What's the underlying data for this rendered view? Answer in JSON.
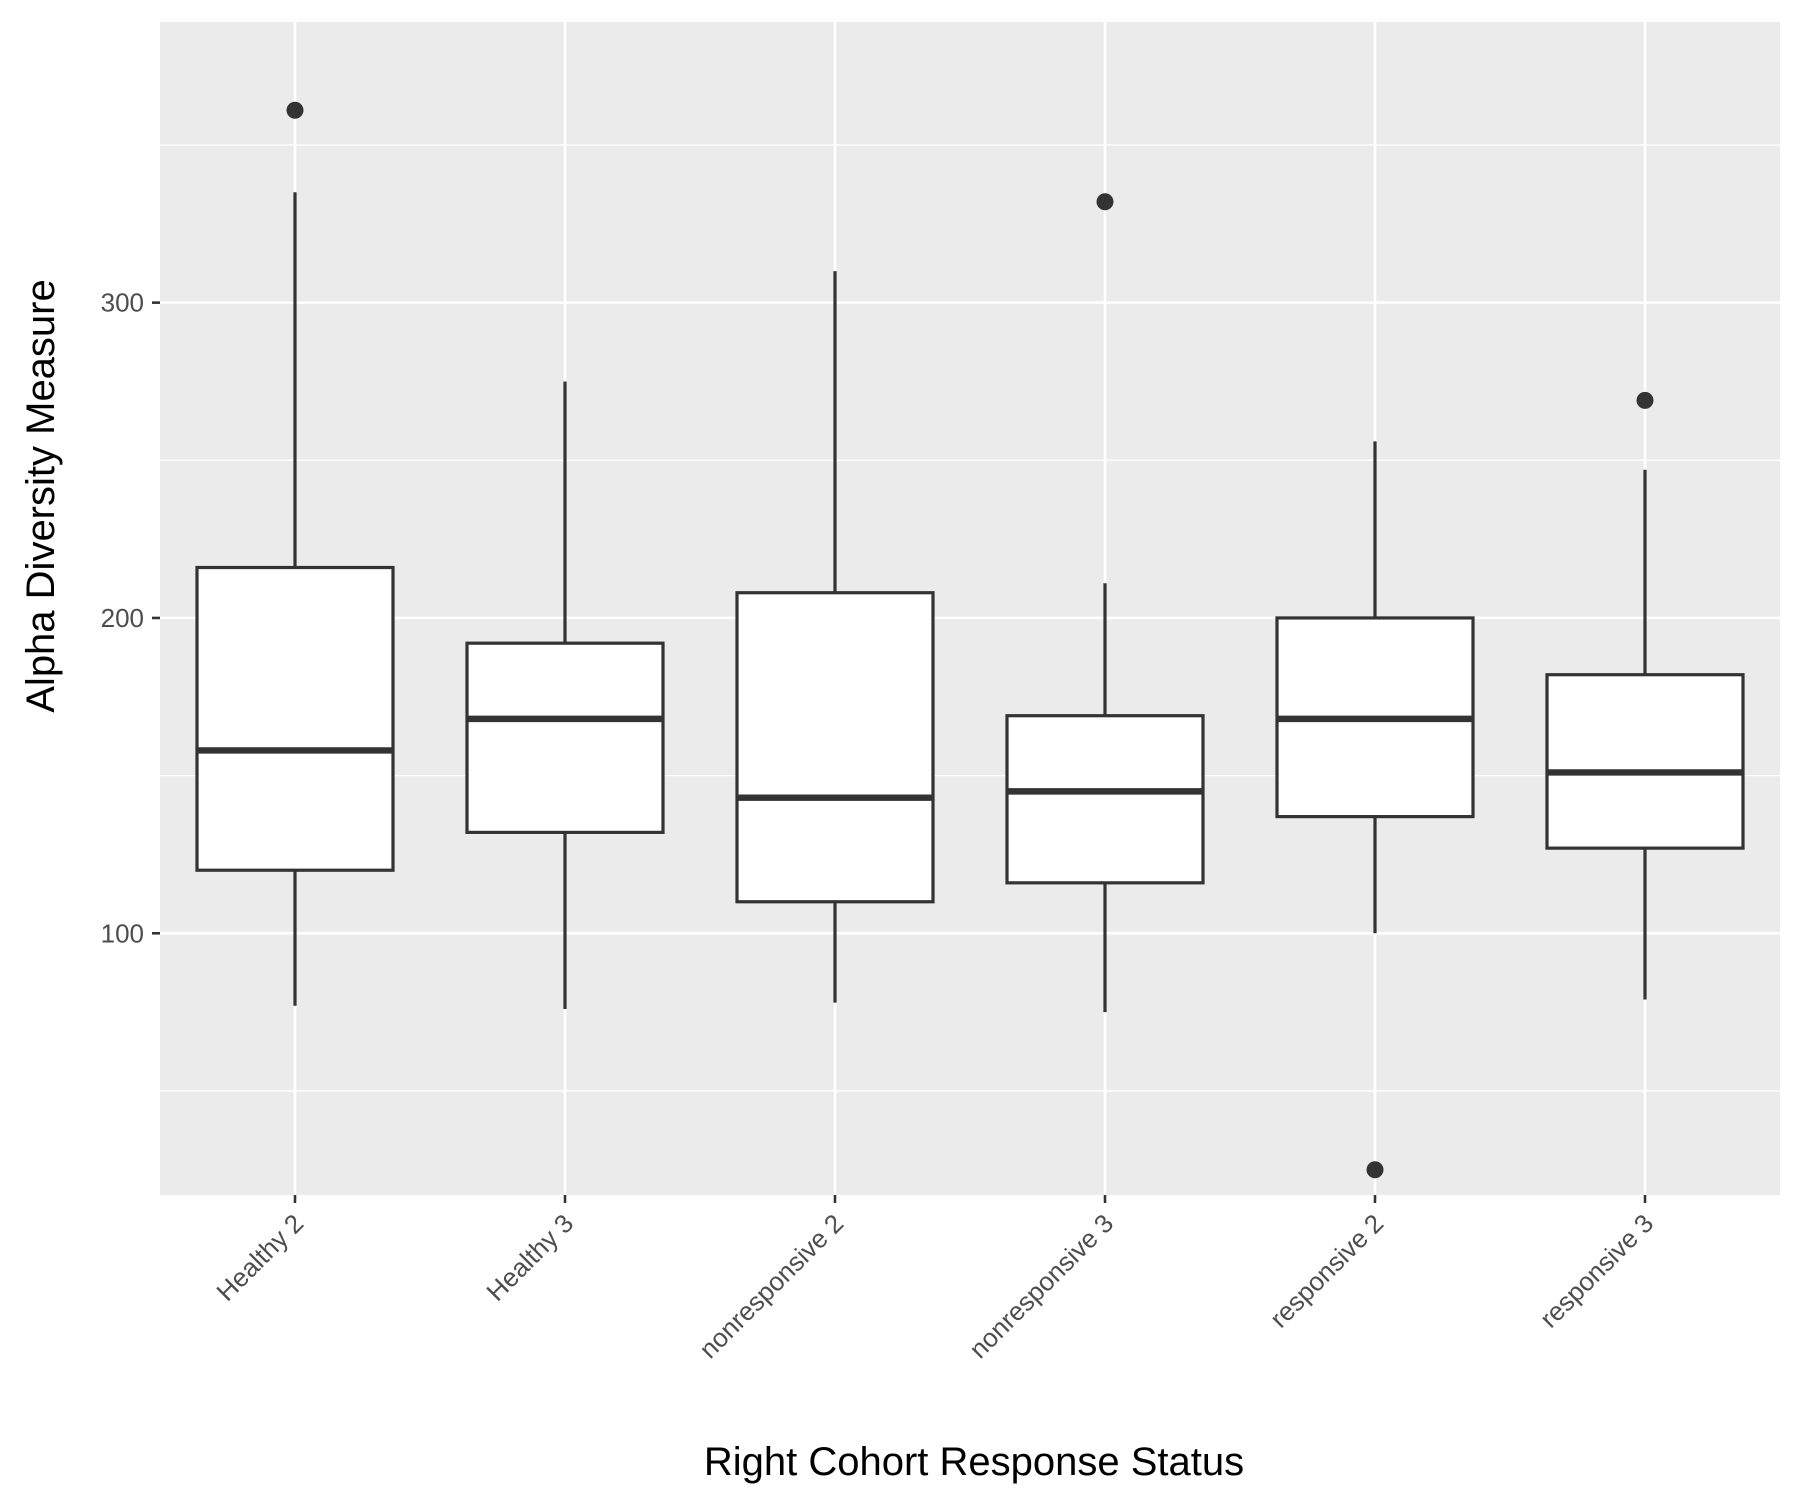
{
  "chart_data": {
    "type": "box",
    "xlabel": "Right Cohort Response Status",
    "ylabel": "Alpha Diversity Measure",
    "ylim": [
      17,
      389
    ],
    "y_ticks": [
      100,
      200,
      300
    ],
    "y_minor_ticks": [
      50,
      150,
      250,
      350
    ],
    "grid": true,
    "colors": {
      "panel": "#ebebeb",
      "grid": "#ffffff",
      "box_fill": "#ffffff",
      "box_line": "#333333",
      "outlier": "#333333",
      "tick": "#333333"
    },
    "categories": [
      "Healthy 2",
      "Healthy 3",
      "nonresponsive 2",
      "nonresponsive 3",
      "responsive 2",
      "responsive 3"
    ],
    "boxes": [
      {
        "category": "Healthy 2",
        "whisker_low": 77,
        "q1": 120,
        "median": 158,
        "q3": 216,
        "whisker_high": 335,
        "outliers": [
          361
        ]
      },
      {
        "category": "Healthy 3",
        "whisker_low": 76,
        "q1": 132,
        "median": 168,
        "q3": 192,
        "whisker_high": 275,
        "outliers": []
      },
      {
        "category": "nonresponsive 2",
        "whisker_low": 78,
        "q1": 110,
        "median": 143,
        "q3": 208,
        "whisker_high": 310,
        "outliers": []
      },
      {
        "category": "nonresponsive 3",
        "whisker_low": 75,
        "q1": 116,
        "median": 145,
        "q3": 169,
        "whisker_high": 211,
        "outliers": [
          332
        ]
      },
      {
        "category": "responsive 2",
        "whisker_low": 100,
        "q1": 137,
        "median": 168,
        "q3": 200,
        "whisker_high": 256,
        "outliers": [
          25
        ]
      },
      {
        "category": "responsive 3",
        "whisker_low": 79,
        "q1": 127,
        "median": 151,
        "q3": 182,
        "whisker_high": 247,
        "outliers": [
          269
        ]
      }
    ]
  }
}
